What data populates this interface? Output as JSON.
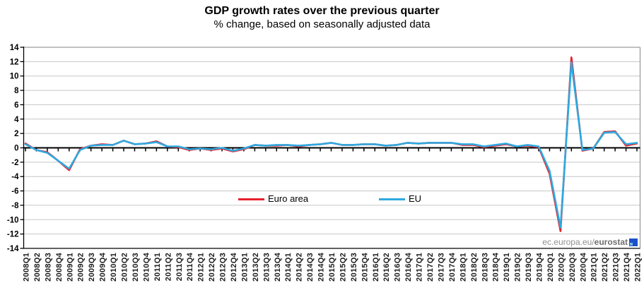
{
  "header": {
    "title": "GDP growth rates over the previous quarter",
    "subtitle": "% change, based on seasonally adjusted data"
  },
  "watermark": {
    "prefix": "ec.europa.eu/",
    "bold": "eurostat"
  },
  "colors": {
    "euro_area": "#e8202c",
    "eu": "#2ea9e0",
    "grid": "#c6c6c6",
    "frame": "#9c9c9c",
    "axis": "#000000",
    "tick_label": "#1c1c1c",
    "watermark_text": "#8f8f8f",
    "logo_blue": "#1b50c8"
  },
  "chart_data": {
    "type": "line",
    "title": "GDP growth rates over the previous quarter",
    "subtitle": "% change, based on seasonally adjusted data",
    "xlabel": "",
    "ylabel": "",
    "ylim": [
      -14,
      14
    ],
    "ytick_step": 2,
    "grid": "horizontal",
    "legend_position": "inside-bottom-center",
    "categories": [
      "2008Q1",
      "2008Q2",
      "2008Q3",
      "2008Q4",
      "2009Q1",
      "2009Q2",
      "2009Q3",
      "2009Q4",
      "2010Q1",
      "2010Q2",
      "2010Q3",
      "2010Q4",
      "2011Q1",
      "2011Q2",
      "2011Q3",
      "2011Q4",
      "2012Q1",
      "2012Q2",
      "2012Q3",
      "2012Q4",
      "2013Q1",
      "2013Q2",
      "2013Q3",
      "2013Q4",
      "2014Q1",
      "2014Q2",
      "2014Q3",
      "2014Q4",
      "2015Q1",
      "2015Q2",
      "2015Q3",
      "2015Q4",
      "2016Q1",
      "2016Q2",
      "2016Q3",
      "2016Q4",
      "2017Q1",
      "2017Q2",
      "2017Q3",
      "2017Q4",
      "2018Q1",
      "2018Q2",
      "2018Q3",
      "2018Q4",
      "2019Q1",
      "2019Q2",
      "2019Q3",
      "2019Q4",
      "2020Q1",
      "2020Q2",
      "2020Q3",
      "2020Q4",
      "2021Q1",
      "2021Q2",
      "2021Q3",
      "2021Q4",
      "2022Q1"
    ],
    "series": [
      {
        "name": "Euro area",
        "color": "#e8202c",
        "values": [
          0.6,
          -0.3,
          -0.6,
          -1.8,
          -3.1,
          -0.2,
          0.3,
          0.5,
          0.4,
          1.0,
          0.5,
          0.6,
          0.9,
          0.2,
          0.1,
          -0.3,
          -0.1,
          -0.3,
          -0.1,
          -0.5,
          -0.2,
          0.4,
          0.3,
          0.3,
          0.4,
          0.2,
          0.4,
          0.5,
          0.7,
          0.4,
          0.4,
          0.5,
          0.5,
          0.3,
          0.4,
          0.7,
          0.6,
          0.7,
          0.7,
          0.7,
          0.4,
          0.4,
          0.1,
          0.3,
          0.5,
          0.2,
          0.3,
          0.1,
          -3.6,
          -11.6,
          12.6,
          -0.4,
          -0.1,
          2.2,
          2.3,
          0.3,
          0.6
        ]
      },
      {
        "name": "EU",
        "color": "#2ea9e0",
        "values": [
          0.5,
          -0.3,
          -0.7,
          -1.8,
          -2.9,
          -0.3,
          0.3,
          0.4,
          0.4,
          1.0,
          0.5,
          0.6,
          0.8,
          0.2,
          0.2,
          -0.2,
          -0.1,
          -0.2,
          0.0,
          -0.4,
          -0.1,
          0.4,
          0.3,
          0.4,
          0.4,
          0.3,
          0.4,
          0.5,
          0.7,
          0.4,
          0.4,
          0.5,
          0.5,
          0.3,
          0.4,
          0.7,
          0.6,
          0.7,
          0.7,
          0.7,
          0.5,
          0.5,
          0.2,
          0.4,
          0.6,
          0.2,
          0.4,
          0.2,
          -3.2,
          -11.1,
          11.9,
          -0.3,
          -0.1,
          2.1,
          2.2,
          0.5,
          0.7
        ]
      }
    ]
  }
}
